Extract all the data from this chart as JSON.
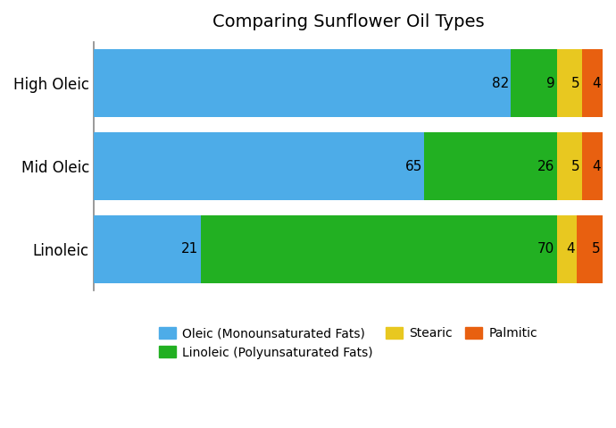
{
  "title": "Comparing Sunflower Oil Types",
  "categories": [
    "High Oleic",
    "Mid Oleic",
    "Linoleic"
  ],
  "series": {
    "Oleic (Monounsaturated Fats)": [
      82,
      65,
      21
    ],
    "Linoleic (Polyunsaturated Fats)": [
      9,
      26,
      70
    ],
    "Stearic": [
      5,
      5,
      4
    ],
    "Palmitic": [
      4,
      4,
      5
    ]
  },
  "colors": {
    "Oleic (Monounsaturated Fats)": "#4DACE8",
    "Linoleic (Polyunsaturated Fats)": "#22B022",
    "Stearic": "#E8C820",
    "Palmitic": "#E86010"
  },
  "bar_height": 0.82,
  "title_fontsize": 14,
  "label_fontsize": 11,
  "legend_fontsize": 10,
  "background_color": "#ffffff",
  "grid_color": "#d0d0d0",
  "xlim": [
    0,
    100
  ],
  "figsize": [
    6.9,
    4.79
  ],
  "dpi": 100,
  "legend_items_row1": [
    "Oleic (Monounsaturated Fats)",
    "Linoleic (Polyunsaturated Fats)",
    "Stearic"
  ],
  "legend_items_row2": [
    "Palmitic"
  ]
}
